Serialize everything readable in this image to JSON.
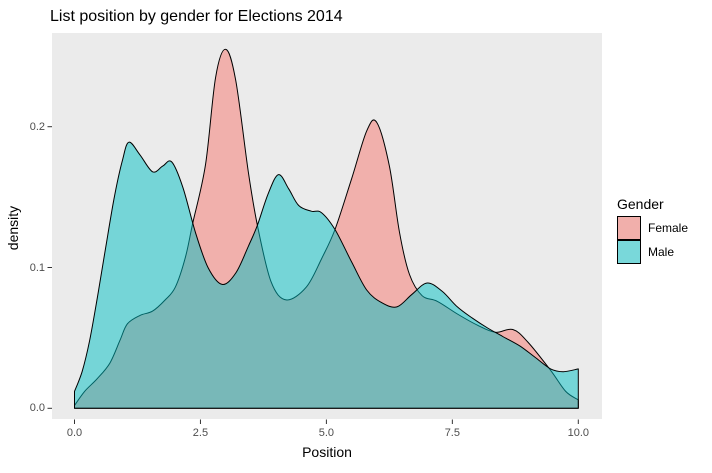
{
  "title": "List position by gender for Elections 2014",
  "chart_data": {
    "type": "area",
    "subtype": "density",
    "title": "List position by gender for Elections 2014",
    "xlabel": "Position",
    "ylabel": "density",
    "xlim": [
      -0.45,
      10.47
    ],
    "ylim": [
      0,
      0.2665
    ],
    "grid": false,
    "panel_color": "#EBEBEB",
    "outline_color": "#000000",
    "tick_color": "#333333",
    "tick_text_color": "#4D4D4D",
    "x_tick_values": [
      0,
      2.5,
      5,
      7.5,
      10
    ],
    "x_tick_labels": [
      "0.0",
      "2.5",
      "5.0",
      "7.5",
      "10.0"
    ],
    "y_tick_values": [
      0,
      0.1,
      0.2
    ],
    "y_tick_labels": [
      "0.0",
      "0.1",
      "0.2"
    ],
    "legend_title": "Gender",
    "legend_position": "right",
    "fill_alpha": 0.5,
    "series": [
      {
        "name": "Female",
        "color": "#F8766D",
        "points": [
          [
            0,
            0.002
          ],
          [
            0.2,
            0.012
          ],
          [
            0.45,
            0.021
          ],
          [
            0.7,
            0.032
          ],
          [
            0.9,
            0.048
          ],
          [
            1.05,
            0.06
          ],
          [
            1.3,
            0.066
          ],
          [
            1.55,
            0.069
          ],
          [
            1.8,
            0.077
          ],
          [
            2.0,
            0.086
          ],
          [
            2.2,
            0.107
          ],
          [
            2.35,
            0.132
          ],
          [
            2.6,
            0.173
          ],
          [
            2.8,
            0.235
          ],
          [
            3.0,
            0.255
          ],
          [
            3.2,
            0.233
          ],
          [
            3.45,
            0.168
          ],
          [
            3.63,
            0.13
          ],
          [
            3.9,
            0.09
          ],
          [
            4.2,
            0.077
          ],
          [
            4.6,
            0.086
          ],
          [
            4.9,
            0.106
          ],
          [
            5.17,
            0.127
          ],
          [
            5.5,
            0.163
          ],
          [
            5.8,
            0.197
          ],
          [
            6.0,
            0.203
          ],
          [
            6.25,
            0.172
          ],
          [
            6.45,
            0.125
          ],
          [
            6.65,
            0.095
          ],
          [
            6.9,
            0.08
          ],
          [
            7.2,
            0.076
          ],
          [
            7.6,
            0.067
          ],
          [
            8.0,
            0.059
          ],
          [
            8.35,
            0.054
          ],
          [
            8.7,
            0.056
          ],
          [
            9.0,
            0.047
          ],
          [
            9.45,
            0.027
          ],
          [
            9.75,
            0.012
          ],
          [
            10,
            0.006
          ]
        ]
      },
      {
        "name": "Male",
        "color": "#00BFC4",
        "points": [
          [
            0,
            0.012
          ],
          [
            0.15,
            0.026
          ],
          [
            0.3,
            0.048
          ],
          [
            0.45,
            0.078
          ],
          [
            0.6,
            0.11
          ],
          [
            0.78,
            0.148
          ],
          [
            0.95,
            0.176
          ],
          [
            1.08,
            0.189
          ],
          [
            1.3,
            0.18
          ],
          [
            1.55,
            0.168
          ],
          [
            1.75,
            0.172
          ],
          [
            1.93,
            0.175
          ],
          [
            2.15,
            0.157
          ],
          [
            2.4,
            0.125
          ],
          [
            2.65,
            0.1
          ],
          [
            2.93,
            0.088
          ],
          [
            3.2,
            0.096
          ],
          [
            3.45,
            0.115
          ],
          [
            3.63,
            0.13
          ],
          [
            3.85,
            0.153
          ],
          [
            4.05,
            0.166
          ],
          [
            4.25,
            0.156
          ],
          [
            4.45,
            0.144
          ],
          [
            4.7,
            0.14
          ],
          [
            4.9,
            0.139
          ],
          [
            5.17,
            0.127
          ],
          [
            5.5,
            0.104
          ],
          [
            5.8,
            0.084
          ],
          [
            6.1,
            0.075
          ],
          [
            6.4,
            0.072
          ],
          [
            6.7,
            0.081
          ],
          [
            7.0,
            0.089
          ],
          [
            7.3,
            0.083
          ],
          [
            7.6,
            0.072
          ],
          [
            7.9,
            0.064
          ],
          [
            8.2,
            0.057
          ],
          [
            8.5,
            0.051
          ],
          [
            8.85,
            0.044
          ],
          [
            9.15,
            0.036
          ],
          [
            9.45,
            0.028
          ],
          [
            9.7,
            0.026
          ],
          [
            10,
            0.028
          ]
        ]
      }
    ]
  },
  "legend": {
    "title": "Gender",
    "items": [
      {
        "label": "Female",
        "swatch_color": "#F1AFAB"
      },
      {
        "label": "Male",
        "swatch_color": "#79D8DA"
      }
    ]
  }
}
